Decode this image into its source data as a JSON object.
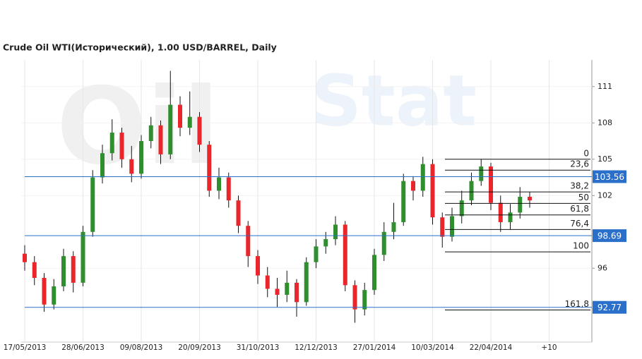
{
  "chart_data": {
    "type": "candlestick",
    "title": "Crude Oil WTI(Исторический), 1.00 USD/BARREL, Daily",
    "watermark": [
      "Oil",
      "Stat"
    ],
    "open": [
      97.2,
      96.5,
      95.2,
      93.0,
      94.5,
      97.0,
      94.8,
      99.0,
      103.5,
      105.5,
      107.2,
      105.0,
      103.8,
      106.5,
      107.8,
      105.4,
      109.5,
      107.6,
      108.5,
      106.2,
      102.4,
      103.5,
      101.6,
      99.5,
      97.0,
      95.4,
      94.3,
      93.8,
      94.8,
      93.2,
      96.5,
      97.8,
      98.4,
      99.6,
      94.6,
      92.6,
      94.2,
      97.1,
      99.0,
      99.8,
      103.2,
      102.4,
      104.6,
      100.2,
      98.6,
      100.3,
      101.6,
      103.2,
      104.4,
      101.4,
      99.8,
      100.6,
      101.9
    ],
    "high": [
      97.9,
      97.0,
      95.6,
      95.1,
      97.6,
      97.4,
      99.5,
      104.1,
      106.2,
      108.3,
      107.6,
      106.1,
      107.0,
      108.5,
      108.2,
      112.3,
      110.2,
      110.6,
      108.9,
      106.5,
      104.3,
      103.9,
      102.0,
      99.9,
      97.5,
      96.1,
      95.2,
      95.8,
      95.1,
      96.9,
      98.4,
      99.0,
      100.3,
      99.9,
      95.0,
      94.8,
      97.6,
      99.8,
      101.4,
      103.8,
      103.6,
      105.2,
      105.0,
      100.6,
      101.0,
      102.4,
      103.9,
      105.0,
      104.7,
      102.0,
      101.3,
      102.7,
      102.3
    ],
    "low": [
      95.8,
      94.6,
      92.4,
      92.6,
      94.1,
      94.0,
      94.5,
      98.6,
      103.0,
      104.9,
      104.3,
      103.1,
      103.4,
      105.9,
      104.6,
      105.0,
      106.9,
      107.0,
      105.6,
      101.9,
      101.7,
      101.0,
      98.9,
      96.1,
      94.7,
      93.6,
      92.8,
      93.2,
      92.0,
      92.9,
      96.0,
      97.2,
      97.9,
      94.1,
      91.5,
      92.1,
      93.8,
      96.6,
      98.4,
      99.5,
      101.6,
      101.9,
      99.6,
      97.7,
      98.2,
      99.7,
      101.2,
      102.8,
      100.8,
      99.0,
      99.2,
      100.1,
      101.0
    ],
    "close": [
      96.5,
      95.2,
      93.0,
      94.5,
      97.0,
      94.8,
      99.0,
      103.5,
      105.5,
      107.2,
      105.0,
      103.8,
      106.5,
      107.8,
      105.4,
      109.5,
      107.6,
      108.5,
      106.2,
      102.4,
      103.5,
      101.6,
      99.5,
      97.0,
      95.4,
      94.3,
      93.8,
      94.8,
      93.2,
      96.5,
      97.8,
      98.4,
      99.6,
      94.6,
      92.6,
      94.2,
      97.1,
      99.0,
      99.8,
      103.2,
      102.4,
      104.6,
      100.2,
      98.6,
      100.3,
      101.6,
      103.2,
      104.4,
      101.4,
      99.8,
      100.6,
      101.9,
      101.6
    ],
    "up_color": "#2f8f2f",
    "down_color": "#e8262b",
    "xtick_labels": [
      "17/05/2013",
      "28/06/2013",
      "09/08/2013",
      "20/09/2013",
      "31/10/2013",
      "12/12/2013",
      "27/01/2014",
      "10/03/2014",
      "22/04/2014",
      "+10"
    ],
    "ylim": [
      89.9,
      113.2
    ],
    "yticks": [
      96,
      102,
      105,
      108,
      111
    ],
    "levels": [
      103.56,
      98.69,
      92.77
    ],
    "level_color": "#2a6fc9",
    "fib": [
      {
        "value": 105.0,
        "label": "0"
      },
      {
        "value": 104.1,
        "label": "23,6"
      },
      {
        "value": 102.3,
        "label": "38,2"
      },
      {
        "value": 101.35,
        "label": "50"
      },
      {
        "value": 100.4,
        "label": "61,8"
      },
      {
        "value": 99.2,
        "label": "76,4"
      },
      {
        "value": 97.35,
        "label": "100"
      },
      {
        "value": 92.55,
        "label": "161,8"
      }
    ]
  }
}
